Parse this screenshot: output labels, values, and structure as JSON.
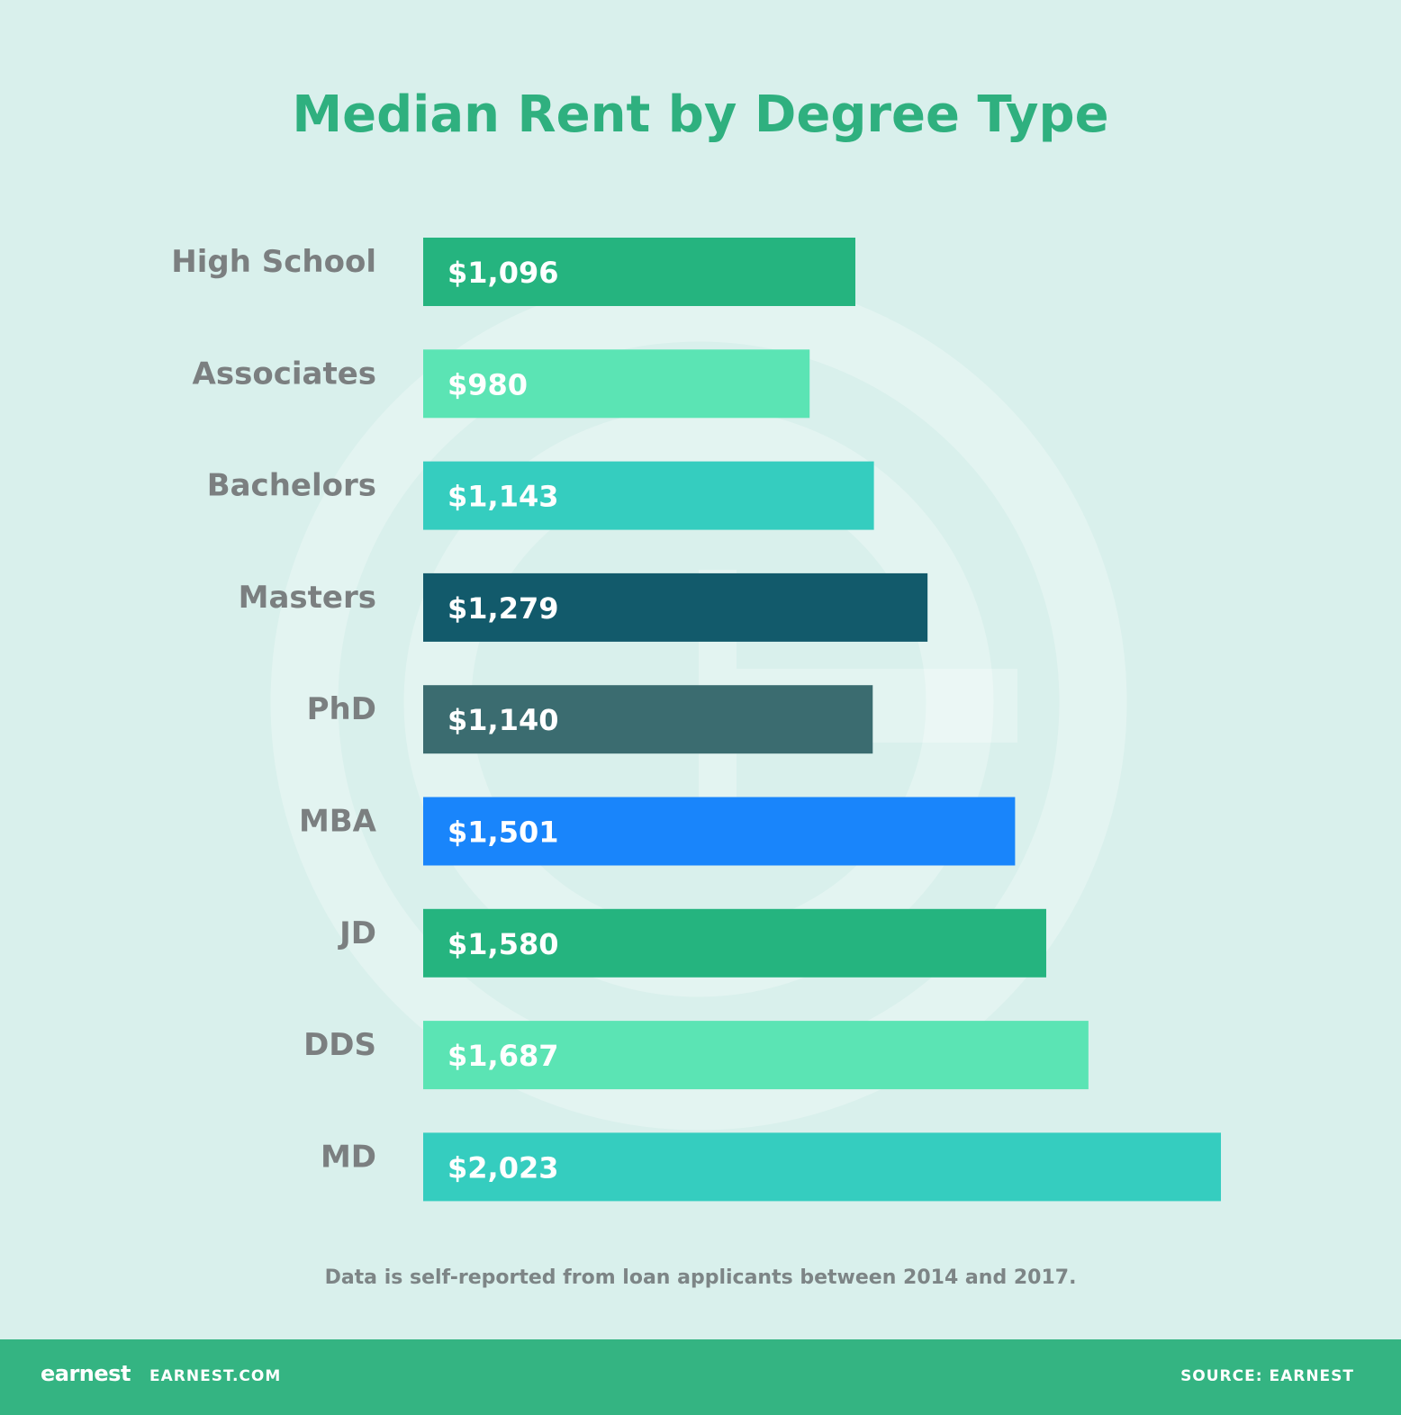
{
  "chart_data": {
    "type": "bar",
    "orientation": "horizontal",
    "title": "Median Rent by Degree Type",
    "categories": [
      "High School",
      "Associates",
      "Bachelors",
      "Masters",
      "PhD",
      "MBA",
      "JD",
      "DDS",
      "MD"
    ],
    "values": [
      1096,
      980,
      1143,
      1279,
      1140,
      1501,
      1580,
      1687,
      2023
    ],
    "value_labels": [
      "$1,096",
      "$980",
      "$1,143",
      "$1,279",
      "$1,140",
      "$1,501",
      "$1,580",
      "$1,687",
      "$2,023"
    ],
    "colors": [
      "#25b47f",
      "#5be4b4",
      "#35cdbf",
      "#125a6b",
      "#3b6c70",
      "#1985fb",
      "#25b47f",
      "#5be4b4",
      "#35cdbf"
    ],
    "xlim": [
      0,
      2023
    ],
    "grid": false,
    "legend": "none",
    "note": "Data is self-reported from loan applicants between 2014 and 2017."
  },
  "footer": {
    "brand": "earnest",
    "site": "EARNEST.COM",
    "source": "SOURCE: EARNEST"
  },
  "colors": {
    "background": "#d9f0ec",
    "title": "#2fb07f",
    "footer": "#34b482"
  }
}
